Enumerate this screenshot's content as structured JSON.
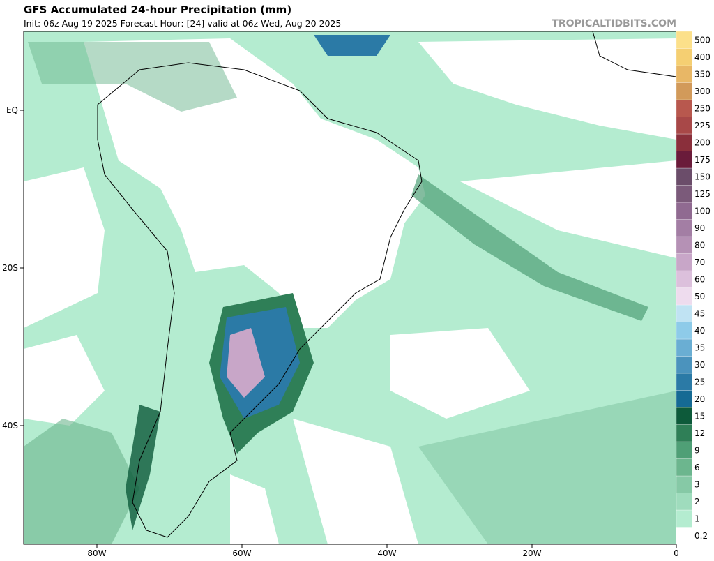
{
  "header": {
    "title": "GFS Accumulated 24-hour Precipitation (mm)",
    "subtitle": "Init: 06z Aug 19 2025   Forecast Hour: [24]   valid at 06z Wed, Aug 20 2025",
    "watermark": "TROPICALTIDBITS.COM"
  },
  "map": {
    "lon_labels": [
      "80W",
      "60W",
      "40W",
      "20W",
      "0"
    ],
    "lat_labels": [
      "EQ",
      "20S",
      "40S"
    ]
  },
  "colorbar": {
    "levels": [
      0.2,
      1,
      2,
      3,
      6,
      9,
      12,
      15,
      20,
      25,
      30,
      35,
      40,
      45,
      50,
      60,
      70,
      80,
      90,
      100,
      125,
      150,
      175,
      200,
      225,
      250,
      300,
      350,
      400,
      500
    ],
    "colors": [
      "#ffffff",
      "#b4ecd0",
      "#9fdcbd",
      "#86c9a6",
      "#6cb68e",
      "#4f9f76",
      "#2f7f57",
      "#0d5a3a",
      "#156a94",
      "#2b7aa6",
      "#4b93bd",
      "#6aaed3",
      "#8ecbe9",
      "#c0e3f3",
      "#eedcee",
      "#dcc0dc",
      "#c8a6c8",
      "#b591b5",
      "#a37ea4",
      "#906a91",
      "#7b5a7a",
      "#6b4d6a",
      "#6a1b3a",
      "#8a2f3b",
      "#a84848",
      "#b8584e",
      "#d29a5a",
      "#e8b766",
      "#f5cf72",
      "#fce08a"
    ]
  }
}
